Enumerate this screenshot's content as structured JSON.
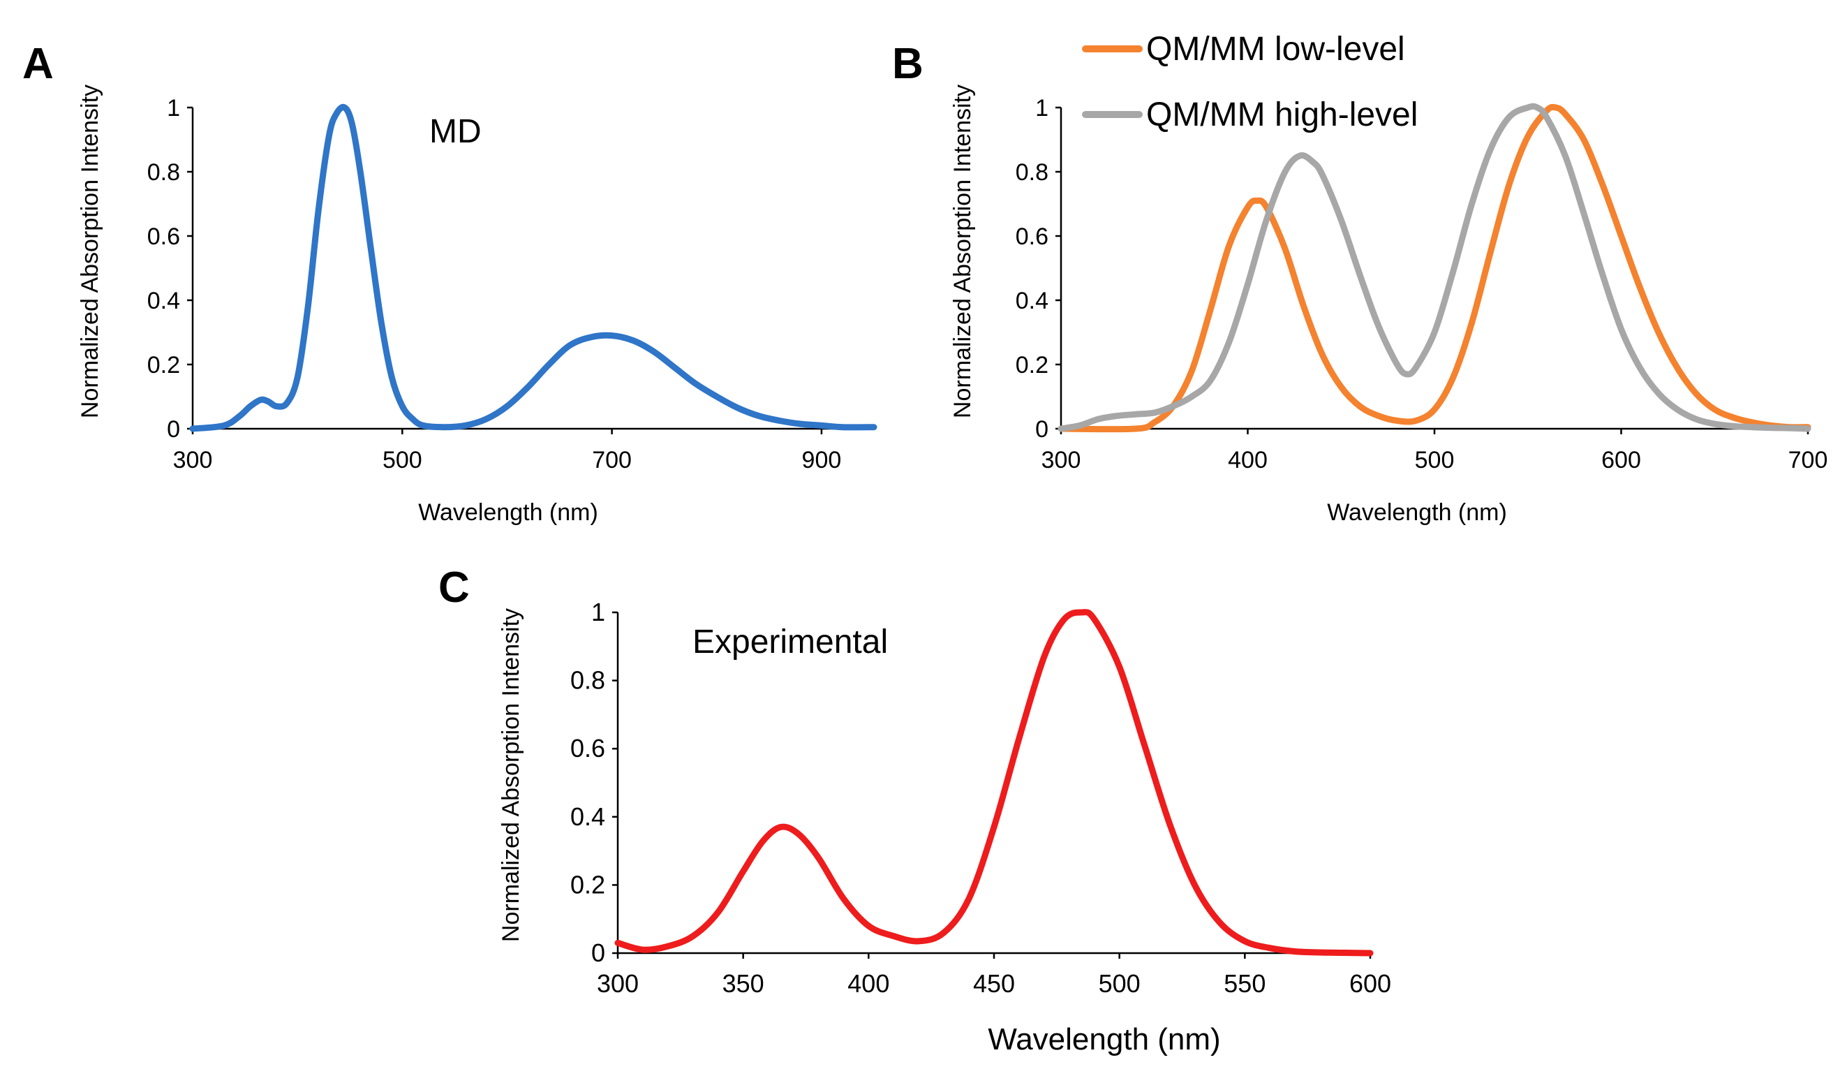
{
  "chart_data": [
    {
      "panel": "A",
      "type": "line",
      "annotation": "MD",
      "xlabel": "Wavelength (nm)",
      "ylabel": "Normalized Absorption Intensity",
      "xlim": [
        300,
        950
      ],
      "ylim": [
        0,
        1
      ],
      "xticks": [
        "300",
        "500",
        "700",
        "900"
      ],
      "yticks": [
        "0",
        "0.2",
        "0.4",
        "0.6",
        "0.8",
        "1"
      ],
      "series": [
        {
          "name": "MD",
          "color": "#2F75C8",
          "x": [
            300,
            330,
            345,
            355,
            365,
            372,
            380,
            390,
            400,
            410,
            420,
            430,
            437,
            445,
            452,
            460,
            470,
            480,
            490,
            500,
            510,
            520,
            540,
            560,
            580,
            600,
            620,
            640,
            660,
            680,
            700,
            720,
            740,
            760,
            780,
            800,
            820,
            840,
            860,
            880,
            900,
            920,
            950
          ],
          "y": [
            0.0,
            0.01,
            0.04,
            0.07,
            0.09,
            0.085,
            0.07,
            0.08,
            0.16,
            0.38,
            0.68,
            0.91,
            0.98,
            1.0,
            0.95,
            0.8,
            0.56,
            0.33,
            0.16,
            0.07,
            0.03,
            0.01,
            0.005,
            0.01,
            0.03,
            0.07,
            0.13,
            0.2,
            0.26,
            0.285,
            0.29,
            0.275,
            0.24,
            0.19,
            0.14,
            0.1,
            0.065,
            0.04,
            0.025,
            0.015,
            0.01,
            0.005,
            0.005
          ]
        }
      ]
    },
    {
      "panel": "B",
      "type": "line",
      "xlabel": "Wavelength (nm)",
      "ylabel": "Normalized Absorption Intensity",
      "xlim": [
        300,
        700
      ],
      "ylim": [
        0,
        1
      ],
      "xticks": [
        "300",
        "400",
        "500",
        "600",
        "700"
      ],
      "yticks": [
        "0",
        "0.2",
        "0.4",
        "0.6",
        "0.8",
        "1"
      ],
      "legend": [
        "QM/MM low-level",
        "QM/MM high-level"
      ],
      "series": [
        {
          "name": "QM/MM low-level",
          "color": "#F4822E",
          "x": [
            300,
            340,
            350,
            360,
            370,
            380,
            390,
            400,
            405,
            410,
            420,
            430,
            440,
            450,
            460,
            470,
            480,
            490,
            500,
            510,
            520,
            530,
            540,
            550,
            560,
            565,
            570,
            580,
            590,
            600,
            610,
            620,
            630,
            640,
            650,
            660,
            670,
            680,
            690,
            700
          ],
          "y": [
            0.0,
            0.0,
            0.02,
            0.07,
            0.18,
            0.37,
            0.57,
            0.69,
            0.71,
            0.69,
            0.56,
            0.38,
            0.23,
            0.13,
            0.07,
            0.04,
            0.025,
            0.025,
            0.06,
            0.16,
            0.33,
            0.55,
            0.76,
            0.91,
            0.99,
            1.0,
            0.98,
            0.9,
            0.76,
            0.6,
            0.44,
            0.3,
            0.19,
            0.11,
            0.06,
            0.035,
            0.02,
            0.01,
            0.005,
            0.005
          ]
        },
        {
          "name": "QM/MM high-level",
          "color": "#A7A7A7",
          "x": [
            300,
            310,
            320,
            330,
            340,
            350,
            360,
            370,
            380,
            390,
            400,
            410,
            420,
            428,
            435,
            440,
            450,
            460,
            470,
            480,
            485,
            490,
            500,
            510,
            520,
            530,
            540,
            550,
            555,
            560,
            570,
            580,
            590,
            600,
            610,
            620,
            630,
            640,
            650,
            660,
            670,
            680,
            690,
            700
          ],
          "y": [
            0.0,
            0.01,
            0.03,
            0.04,
            0.045,
            0.05,
            0.07,
            0.1,
            0.15,
            0.27,
            0.45,
            0.65,
            0.8,
            0.85,
            0.83,
            0.79,
            0.65,
            0.48,
            0.32,
            0.2,
            0.17,
            0.19,
            0.3,
            0.49,
            0.7,
            0.87,
            0.97,
            1.0,
            1.0,
            0.97,
            0.85,
            0.67,
            0.48,
            0.31,
            0.19,
            0.11,
            0.06,
            0.03,
            0.015,
            0.008,
            0.005,
            0.003,
            0.002,
            0.0
          ]
        }
      ]
    },
    {
      "panel": "C",
      "type": "line",
      "annotation": "Experimental",
      "xlabel": "Wavelength (nm)",
      "ylabel": "Normalized Absorption Intensity",
      "xlim": [
        300,
        600
      ],
      "ylim": [
        0,
        1
      ],
      "xticks": [
        "300",
        "350",
        "400",
        "450",
        "500",
        "550",
        "600"
      ],
      "yticks": [
        "0",
        "0.2",
        "0.4",
        "0.6",
        "0.8",
        "1"
      ],
      "series": [
        {
          "name": "Experimental",
          "color": "#EE1C1C",
          "x": [
            300,
            310,
            320,
            330,
            340,
            350,
            358,
            365,
            372,
            380,
            390,
            400,
            410,
            420,
            430,
            440,
            450,
            460,
            470,
            478,
            485,
            490,
            500,
            510,
            520,
            530,
            540,
            550,
            560,
            570,
            580,
            590,
            600
          ],
          "y": [
            0.03,
            0.01,
            0.02,
            0.05,
            0.12,
            0.24,
            0.33,
            0.37,
            0.35,
            0.28,
            0.16,
            0.08,
            0.05,
            0.035,
            0.06,
            0.16,
            0.37,
            0.63,
            0.87,
            0.98,
            1.0,
            0.98,
            0.84,
            0.61,
            0.38,
            0.2,
            0.09,
            0.035,
            0.015,
            0.005,
            0.002,
            0.001,
            0.0
          ]
        }
      ]
    }
  ]
}
